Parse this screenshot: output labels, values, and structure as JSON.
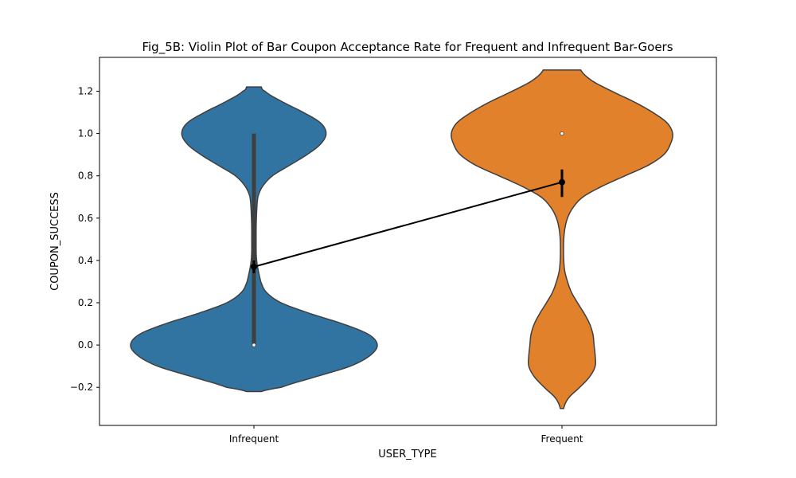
{
  "chart_data": {
    "type": "violin",
    "title": "Fig_5B: Violin Plot of Bar Coupon Acceptance Rate for Frequent and Infrequent Bar-Goers",
    "xlabel": "USER_TYPE",
    "ylabel": "COUPON_SUCCESS",
    "categories": [
      "Infrequent",
      "Frequent"
    ],
    "ylim": [
      -0.38,
      1.36
    ],
    "yticks": [
      -0.2,
      0.0,
      0.2,
      0.4,
      0.6,
      0.8,
      1.0,
      1.2
    ],
    "ytick_labels": [
      "−0.2",
      "0.0",
      "0.2",
      "0.4",
      "0.6",
      "0.8",
      "1.0",
      "1.2"
    ],
    "grid": false,
    "legend": "none",
    "violins": [
      {
        "category": "Infrequent",
        "color": "#3274a1",
        "range": [
          -0.22,
          1.22
        ],
        "median": 0.0,
        "quartiles": [
          0.0,
          1.0
        ],
        "density": [
          [
            -0.22,
            0.06
          ],
          [
            -0.2,
            0.22
          ],
          [
            -0.15,
            0.5
          ],
          [
            -0.1,
            0.78
          ],
          [
            -0.05,
            0.94
          ],
          [
            0.0,
            1.0
          ],
          [
            0.05,
            0.93
          ],
          [
            0.1,
            0.72
          ],
          [
            0.15,
            0.45
          ],
          [
            0.2,
            0.22
          ],
          [
            0.25,
            0.1
          ],
          [
            0.3,
            0.055
          ],
          [
            0.4,
            0.022
          ],
          [
            0.5,
            0.018
          ],
          [
            0.6,
            0.02
          ],
          [
            0.7,
            0.032
          ],
          [
            0.75,
            0.07
          ],
          [
            0.8,
            0.15
          ],
          [
            0.85,
            0.29
          ],
          [
            0.9,
            0.43
          ],
          [
            0.95,
            0.54
          ],
          [
            1.0,
            0.585
          ],
          [
            1.05,
            0.54
          ],
          [
            1.1,
            0.4
          ],
          [
            1.15,
            0.23
          ],
          [
            1.2,
            0.09
          ],
          [
            1.22,
            0.06
          ]
        ]
      },
      {
        "category": "Frequent",
        "color": "#e1812c",
        "range": [
          -0.3,
          1.3
        ],
        "median": 1.0,
        "quartiles": [
          1.0,
          1.0
        ],
        "density": [
          [
            -0.3,
            0.015
          ],
          [
            -0.25,
            0.06
          ],
          [
            -0.2,
            0.16
          ],
          [
            -0.15,
            0.25
          ],
          [
            -0.1,
            0.3
          ],
          [
            -0.05,
            0.3
          ],
          [
            0.0,
            0.29
          ],
          [
            0.05,
            0.28
          ],
          [
            0.1,
            0.25
          ],
          [
            0.15,
            0.2
          ],
          [
            0.2,
            0.14
          ],
          [
            0.25,
            0.085
          ],
          [
            0.3,
            0.05
          ],
          [
            0.35,
            0.025
          ],
          [
            0.4,
            0.016
          ],
          [
            0.45,
            0.014
          ],
          [
            0.5,
            0.016
          ],
          [
            0.55,
            0.026
          ],
          [
            0.6,
            0.05
          ],
          [
            0.65,
            0.1
          ],
          [
            0.7,
            0.19
          ],
          [
            0.75,
            0.36
          ],
          [
            0.8,
            0.57
          ],
          [
            0.85,
            0.78
          ],
          [
            0.9,
            0.92
          ],
          [
            0.95,
            0.98
          ],
          [
            1.0,
            1.0
          ],
          [
            1.05,
            0.95
          ],
          [
            1.1,
            0.82
          ],
          [
            1.15,
            0.65
          ],
          [
            1.2,
            0.45
          ],
          [
            1.25,
            0.27
          ],
          [
            1.3,
            0.17
          ]
        ]
      }
    ],
    "point_series": {
      "color": "#000000",
      "points": [
        {
          "category": "Infrequent",
          "mean": 0.37,
          "ci": [
            0.34,
            0.4
          ]
        },
        {
          "category": "Frequent",
          "mean": 0.77,
          "ci": [
            0.7,
            0.83
          ]
        }
      ]
    }
  }
}
